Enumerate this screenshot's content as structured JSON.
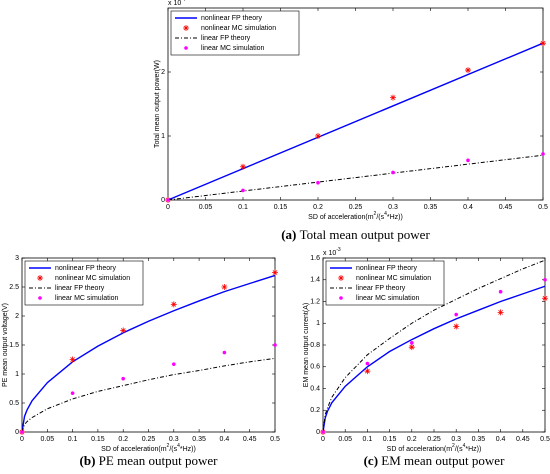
{
  "chart_data": [
    {
      "type": "line",
      "caption_label": "(a)",
      "caption": "Total mean output power",
      "xlabel_parts": [
        "SD of acceleration(m",
        "2",
        "/(s",
        "4",
        "*Hz))"
      ],
      "ylabel": "Total mean output power(W)",
      "multiplier_base": "x 10",
      "multiplier_exp": "-4",
      "xlim": [
        0,
        0.5
      ],
      "xticks": [
        0,
        0.05,
        0.1,
        0.15,
        0.2,
        0.25,
        0.3,
        0.35,
        0.4,
        0.45,
        0.5
      ],
      "ylim": [
        0,
        3
      ],
      "yticks": [
        0,
        1,
        2
      ],
      "legend": "upper left",
      "series": [
        {
          "name": "nonlinear FP theory",
          "color": "#0000ff",
          "style": "solid",
          "x": [
            0,
            0.5
          ],
          "values": [
            0,
            2.45
          ]
        },
        {
          "name": "nonlinear MC simulation",
          "color": "#ff0000",
          "style": "star",
          "x": [
            0,
            0.1,
            0.2,
            0.3,
            0.4,
            0.5
          ],
          "values": [
            0,
            0.52,
            1.0,
            1.6,
            2.03,
            2.45
          ]
        },
        {
          "name": "linear FP theory",
          "color": "#000000",
          "style": "dashdot",
          "x": [
            0,
            0.5
          ],
          "values": [
            0,
            0.7
          ]
        },
        {
          "name": "linear MC simulation",
          "color": "#ff00ff",
          "style": "dot",
          "x": [
            0,
            0.1,
            0.2,
            0.3,
            0.4,
            0.5
          ],
          "values": [
            0,
            0.15,
            0.27,
            0.43,
            0.62,
            0.72
          ]
        }
      ]
    },
    {
      "type": "line",
      "caption_label": "(b)",
      "caption": "PE mean output power",
      "xlabel_parts": [
        "SD of acceleration(m",
        "2",
        "/(s",
        "4",
        "*Hz))"
      ],
      "ylabel": "PE mean output voltage(V)",
      "xlim": [
        0,
        0.5
      ],
      "xticks": [
        0,
        0.05,
        0.1,
        0.15,
        0.2,
        0.25,
        0.3,
        0.35,
        0.4,
        0.45,
        0.5
      ],
      "ylim": [
        0,
        3
      ],
      "yticks": [
        0,
        0.5,
        1,
        1.5,
        2,
        2.5,
        3
      ],
      "legend": "upper left",
      "series": [
        {
          "name": "nonlinear FP theory",
          "color": "#0000ff",
          "style": "solid",
          "x": [
            0,
            0.005,
            0.01,
            0.02,
            0.05,
            0.1,
            0.15,
            0.2,
            0.25,
            0.3,
            0.35,
            0.4,
            0.45,
            0.5
          ],
          "values": [
            0,
            0.27,
            0.38,
            0.54,
            0.85,
            1.21,
            1.48,
            1.71,
            1.91,
            2.09,
            2.26,
            2.42,
            2.56,
            2.7
          ]
        },
        {
          "name": "nonlinear MC simulation",
          "color": "#ff0000",
          "style": "star",
          "x": [
            0,
            0.1,
            0.2,
            0.3,
            0.4,
            0.5
          ],
          "values": [
            0,
            1.25,
            1.75,
            2.2,
            2.5,
            2.75
          ]
        },
        {
          "name": "linear FP theory",
          "color": "#000000",
          "style": "dashdot",
          "x": [
            0,
            0.005,
            0.01,
            0.02,
            0.05,
            0.1,
            0.15,
            0.2,
            0.25,
            0.3,
            0.35,
            0.4,
            0.45,
            0.5
          ],
          "values": [
            0,
            0.13,
            0.18,
            0.25,
            0.4,
            0.57,
            0.7,
            0.8,
            0.9,
            0.99,
            1.06,
            1.14,
            1.21,
            1.27
          ]
        },
        {
          "name": "linear MC simulation",
          "color": "#ff00ff",
          "style": "dot",
          "x": [
            0,
            0.1,
            0.2,
            0.3,
            0.4,
            0.5
          ],
          "values": [
            0,
            0.67,
            0.92,
            1.17,
            1.37,
            1.5
          ]
        }
      ]
    },
    {
      "type": "line",
      "caption_label": "(c)",
      "caption": "EM mean output power",
      "xlabel_parts": [
        "SD of acceleration(m",
        "2",
        "/(s",
        "4",
        "*Hz))"
      ],
      "ylabel": "EM mean output current(A)",
      "multiplier_base": "x 10",
      "multiplier_exp": "-3",
      "xlim": [
        0,
        0.5
      ],
      "xticks": [
        0,
        0.05,
        0.1,
        0.15,
        0.2,
        0.25,
        0.3,
        0.35,
        0.4,
        0.45,
        0.5
      ],
      "ylim": [
        0,
        1.6
      ],
      "yticks": [
        0,
        0.2,
        0.4,
        0.6,
        0.8,
        1,
        1.2,
        1.4,
        1.6
      ],
      "legend": "upper left",
      "series": [
        {
          "name": "nonlinear FP theory",
          "color": "#0000ff",
          "style": "solid",
          "x": [
            0,
            0.005,
            0.01,
            0.02,
            0.05,
            0.1,
            0.15,
            0.2,
            0.25,
            0.3,
            0.35,
            0.4,
            0.45,
            0.5
          ],
          "values": [
            0,
            0.13,
            0.19,
            0.27,
            0.42,
            0.6,
            0.74,
            0.85,
            0.95,
            1.04,
            1.12,
            1.2,
            1.27,
            1.34
          ]
        },
        {
          "name": "nonlinear MC simulation",
          "color": "#ff0000",
          "style": "star",
          "x": [
            0,
            0.1,
            0.2,
            0.3,
            0.4,
            0.5
          ],
          "values": [
            0,
            0.56,
            0.78,
            0.97,
            1.1,
            1.23
          ]
        },
        {
          "name": "linear FP theory",
          "color": "#000000",
          "style": "dashdot",
          "x": [
            0,
            0.005,
            0.01,
            0.02,
            0.05,
            0.1,
            0.15,
            0.2,
            0.25,
            0.3,
            0.35,
            0.4,
            0.45,
            0.5
          ],
          "values": [
            0,
            0.16,
            0.22,
            0.32,
            0.5,
            0.71,
            0.86,
            1.0,
            1.12,
            1.22,
            1.32,
            1.41,
            1.5,
            1.58
          ]
        },
        {
          "name": "linear MC simulation",
          "color": "#ff00ff",
          "style": "dot",
          "x": [
            0,
            0.1,
            0.2,
            0.3,
            0.4,
            0.5
          ],
          "values": [
            0,
            0.63,
            0.82,
            1.08,
            1.29,
            1.4
          ]
        }
      ]
    }
  ]
}
